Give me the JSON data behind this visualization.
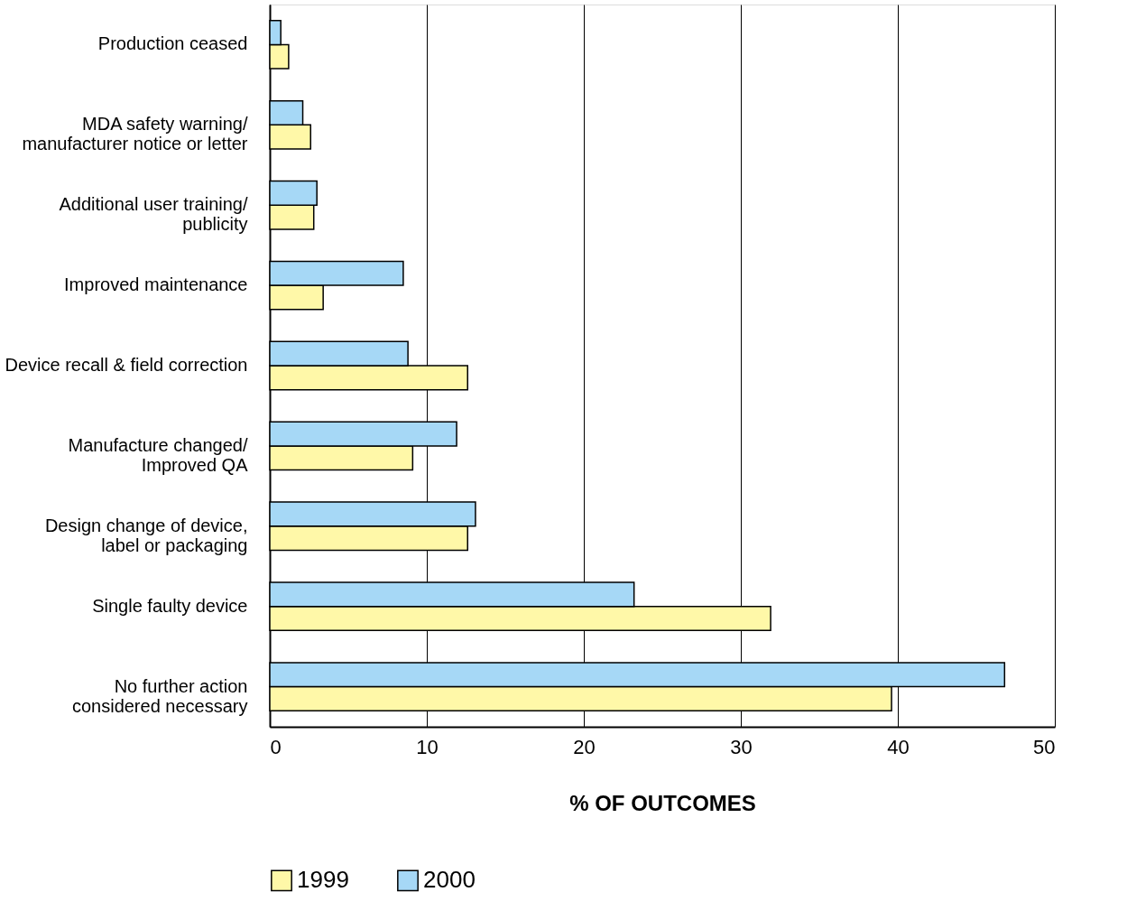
{
  "chart_data": {
    "type": "bar",
    "orientation": "horizontal",
    "xlabel": "% OF OUTCOMES",
    "categories": [
      "Production ceased",
      "MDA safety warning/\nmanufacturer notice or letter",
      "Additional user training/\npublicity",
      "Improved maintenance",
      "Device recall & field correction",
      "Manufacture changed/\nImproved QA",
      "Design change of device,\nlabel or packaging",
      "Single faulty device",
      "No further action\nconsidered necessary"
    ],
    "series": [
      {
        "name": "1999",
        "color": "#fff8a8",
        "values": [
          1.2,
          2.6,
          2.8,
          3.4,
          12.6,
          9.1,
          12.6,
          31.9,
          39.6
        ]
      },
      {
        "name": "2000",
        "color": "#a6d8f6",
        "values": [
          0.7,
          2.1,
          3.0,
          8.5,
          8.8,
          11.9,
          13.1,
          23.2,
          46.8
        ]
      }
    ],
    "xlim": [
      0,
      50
    ],
    "xticks": [
      0,
      10,
      20,
      30,
      40,
      50
    ],
    "grid": "x",
    "legend": "bottom"
  }
}
